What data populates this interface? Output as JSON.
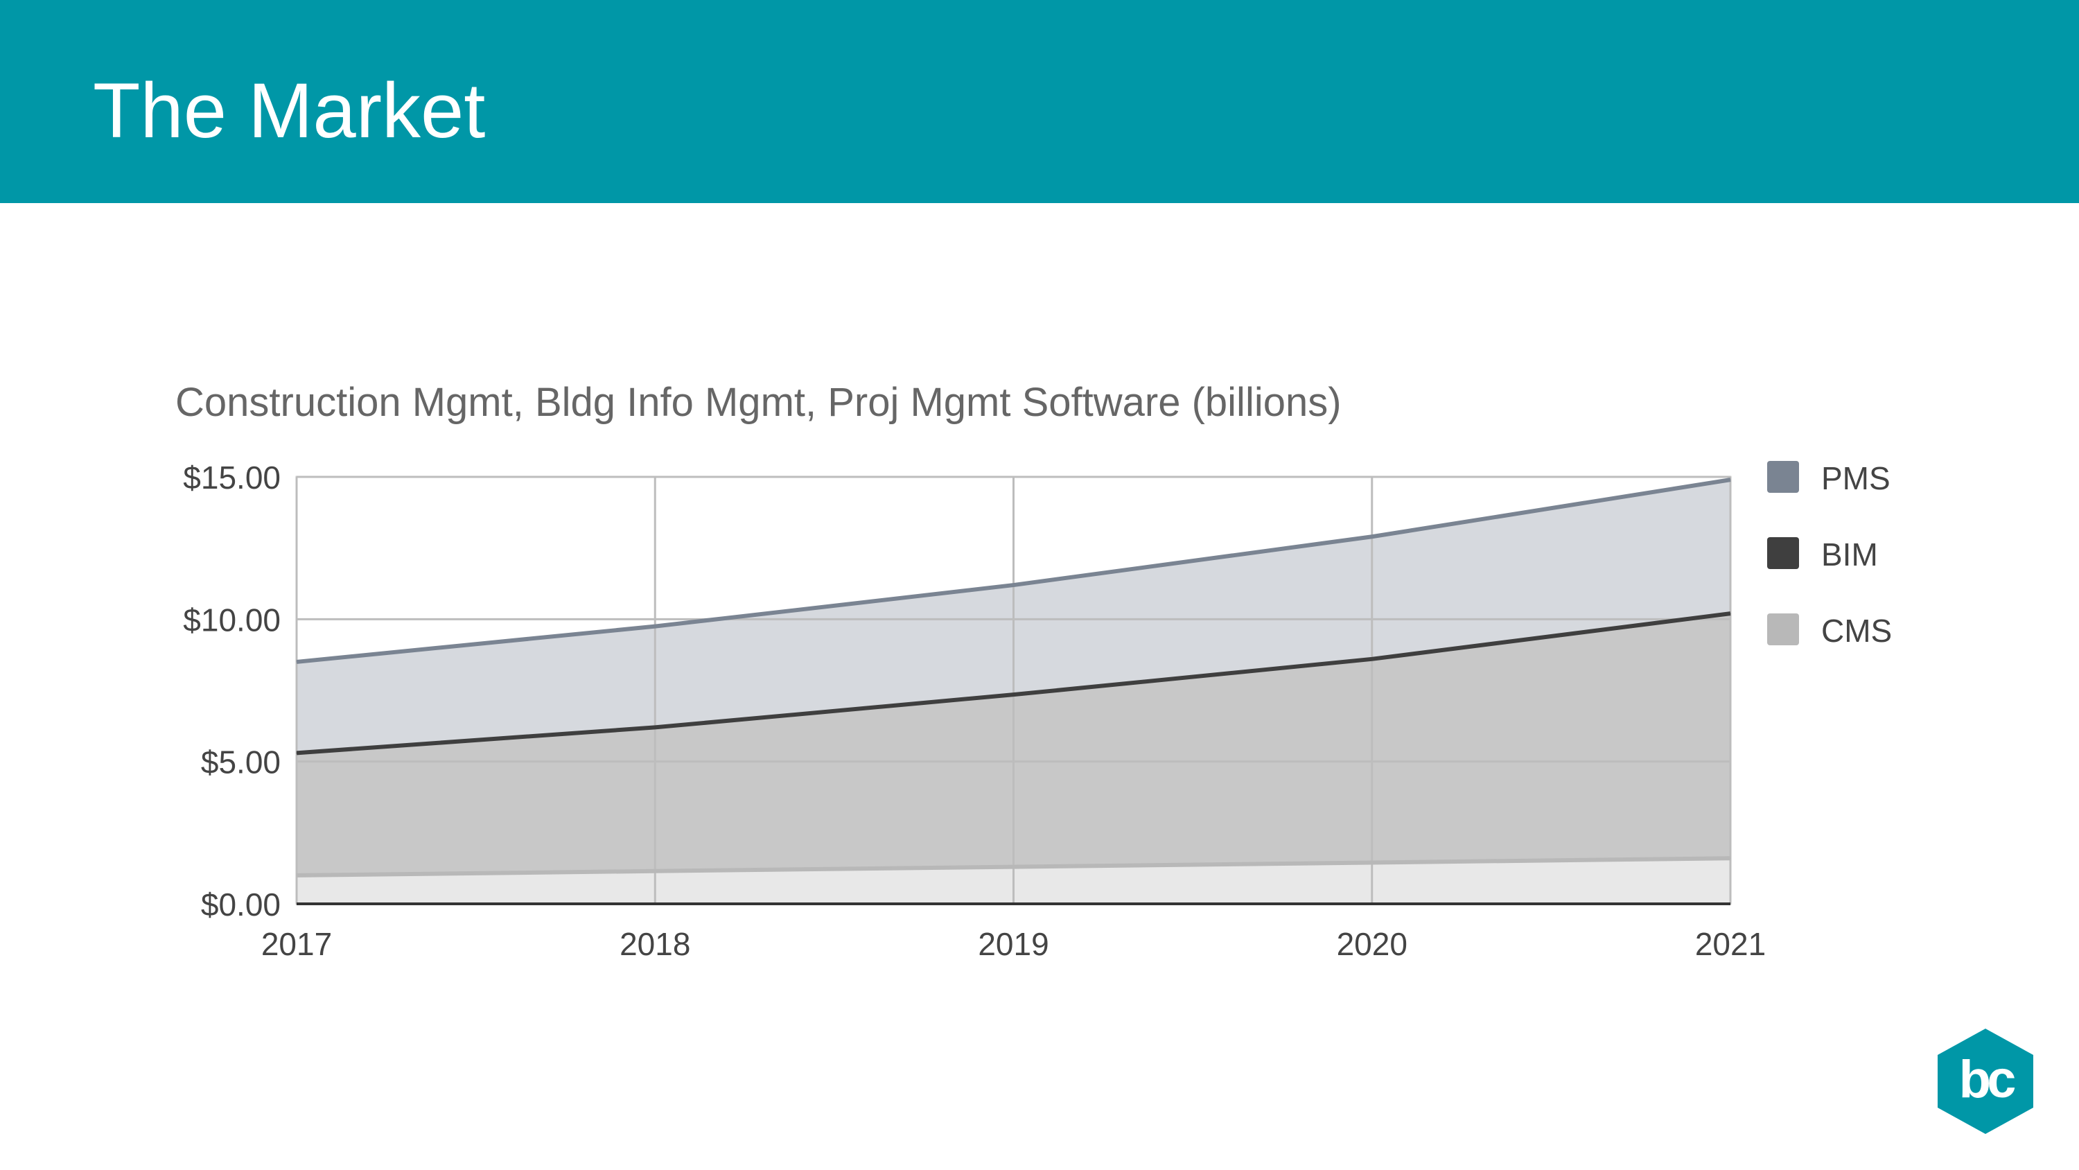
{
  "slide": {
    "title": "The Market"
  },
  "colors": {
    "header": "#0097a7",
    "pms": "#7a8492",
    "pms_fill": "#d6d9de",
    "bim": "#3f3f3f",
    "bim_fill": "#c8c8c8",
    "cms": "#b8b8b8",
    "cms_fill": "#e8e8e8",
    "logo": "#0097a7"
  },
  "chart_data": {
    "type": "area",
    "stacked": true,
    "title": "Construction Mgmt, Bldg Info Mgmt, Proj Mgmt Software (billions)",
    "xlabel": "",
    "ylabel": "",
    "x": [
      "2017",
      "2018",
      "2019",
      "2020",
      "2021"
    ],
    "ylim": [
      0,
      15
    ],
    "yticks": [
      "$0.00",
      "$5.00",
      "$10.00",
      "$15.00"
    ],
    "ytick_values": [
      0,
      5,
      10,
      15
    ],
    "grid": true,
    "legend": "right",
    "series": [
      {
        "name": "CMS",
        "values": [
          1.0,
          1.15,
          1.3,
          1.45,
          1.6
        ]
      },
      {
        "name": "BIM",
        "values": [
          4.3,
          5.05,
          6.05,
          7.15,
          8.6
        ]
      },
      {
        "name": "PMS",
        "values": [
          3.2,
          3.55,
          3.85,
          4.3,
          4.7
        ]
      }
    ]
  },
  "logo": {
    "name": "bc-hexagon-logo",
    "text": "bc"
  }
}
